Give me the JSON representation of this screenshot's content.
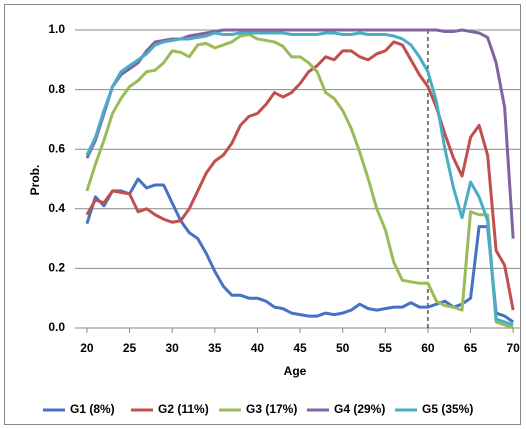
{
  "chart_data": {
    "type": "line",
    "x_label": "Age",
    "y_label": "Prob.",
    "x": [
      20,
      21,
      22,
      23,
      24,
      25,
      26,
      27,
      28,
      29,
      30,
      31,
      32,
      33,
      34,
      35,
      36,
      37,
      38,
      39,
      40,
      41,
      42,
      43,
      44,
      45,
      46,
      47,
      48,
      49,
      50,
      51,
      52,
      53,
      54,
      55,
      56,
      57,
      58,
      59,
      60,
      61,
      62,
      63,
      64,
      65,
      66,
      67,
      68,
      69,
      70
    ],
    "xlim": [
      18.6,
      70.8
    ],
    "xticks": [
      20,
      25,
      30,
      35,
      40,
      45,
      50,
      55,
      60,
      65,
      70
    ],
    "ylim": [
      0,
      1
    ],
    "yticks": [
      {
        "value": 0,
        "label": "0.0"
      },
      0.2,
      0.4,
      0.6,
      0.8,
      {
        "value": 1,
        "label": "1.0"
      }
    ],
    "grid": true,
    "reference_line_x": 60,
    "legend": "bottom",
    "series": [
      {
        "name": "G1 (8%)",
        "color": "#4472c4",
        "values": [
          0.35,
          0.44,
          0.41,
          0.46,
          0.46,
          0.45,
          0.5,
          0.47,
          0.48,
          0.48,
          0.42,
          0.36,
          0.32,
          0.3,
          0.25,
          0.19,
          0.14,
          0.11,
          0.11,
          0.1,
          0.1,
          0.09,
          0.07,
          0.065,
          0.05,
          0.045,
          0.04,
          0.04,
          0.05,
          0.045,
          0.05,
          0.06,
          0.08,
          0.065,
          0.06,
          0.065,
          0.07,
          0.07,
          0.085,
          0.07,
          0.07,
          0.08,
          0.09,
          0.07,
          0.08,
          0.1,
          0.34,
          0.34,
          0.05,
          0.04,
          0.02
        ]
      },
      {
        "name": "G2 (11%)",
        "color": "#c0504d",
        "values": [
          0.38,
          0.43,
          0.42,
          0.46,
          0.455,
          0.45,
          0.39,
          0.4,
          0.38,
          0.365,
          0.355,
          0.36,
          0.4,
          0.46,
          0.52,
          0.56,
          0.58,
          0.62,
          0.68,
          0.71,
          0.72,
          0.75,
          0.79,
          0.775,
          0.79,
          0.82,
          0.86,
          0.88,
          0.91,
          0.9,
          0.93,
          0.93,
          0.91,
          0.9,
          0.92,
          0.93,
          0.96,
          0.95,
          0.9,
          0.85,
          0.81,
          0.74,
          0.65,
          0.57,
          0.51,
          0.64,
          0.68,
          0.58,
          0.26,
          0.21,
          0.06
        ]
      },
      {
        "name": "G3 (17%)",
        "color": "#9bbb59",
        "values": [
          0.46,
          0.55,
          0.63,
          0.72,
          0.77,
          0.81,
          0.83,
          0.86,
          0.865,
          0.89,
          0.93,
          0.925,
          0.91,
          0.95,
          0.955,
          0.94,
          0.95,
          0.96,
          0.98,
          0.985,
          0.97,
          0.965,
          0.96,
          0.945,
          0.91,
          0.91,
          0.89,
          0.86,
          0.79,
          0.77,
          0.73,
          0.67,
          0.59,
          0.5,
          0.4,
          0.33,
          0.22,
          0.16,
          0.155,
          0.15,
          0.15,
          0.09,
          0.075,
          0.07,
          0.06,
          0.39,
          0.38,
          0.38,
          0.02,
          0.01,
          0.0
        ]
      },
      {
        "name": "G4 (29%)",
        "color": "#8064a2",
        "values": [
          0.57,
          0.63,
          0.72,
          0.81,
          0.85,
          0.87,
          0.89,
          0.93,
          0.96,
          0.965,
          0.97,
          0.97,
          0.98,
          0.985,
          0.99,
          0.995,
          1.0,
          1.0,
          1.0,
          1.0,
          1.0,
          1.0,
          1.0,
          1.0,
          1.0,
          1.0,
          1.0,
          1.0,
          1.0,
          1.0,
          1.0,
          1.0,
          1.0,
          1.0,
          1.0,
          1.0,
          1.0,
          1.0,
          1.0,
          1.0,
          1.0,
          1.0,
          0.995,
          0.995,
          1.0,
          0.995,
          0.99,
          0.975,
          0.89,
          0.74,
          0.3
        ]
      },
      {
        "name": "G5 (35%)",
        "color": "#4bacc6",
        "values": [
          0.58,
          0.64,
          0.73,
          0.81,
          0.86,
          0.88,
          0.9,
          0.92,
          0.95,
          0.96,
          0.965,
          0.97,
          0.97,
          0.975,
          0.98,
          0.99,
          0.985,
          0.985,
          0.99,
          0.99,
          0.99,
          0.99,
          0.99,
          0.99,
          0.985,
          0.985,
          0.985,
          0.985,
          0.99,
          0.99,
          0.985,
          0.985,
          0.99,
          0.985,
          0.985,
          0.985,
          0.98,
          0.97,
          0.95,
          0.91,
          0.86,
          0.76,
          0.6,
          0.47,
          0.37,
          0.49,
          0.44,
          0.36,
          0.03,
          0.02,
          0.01
        ]
      }
    ]
  }
}
